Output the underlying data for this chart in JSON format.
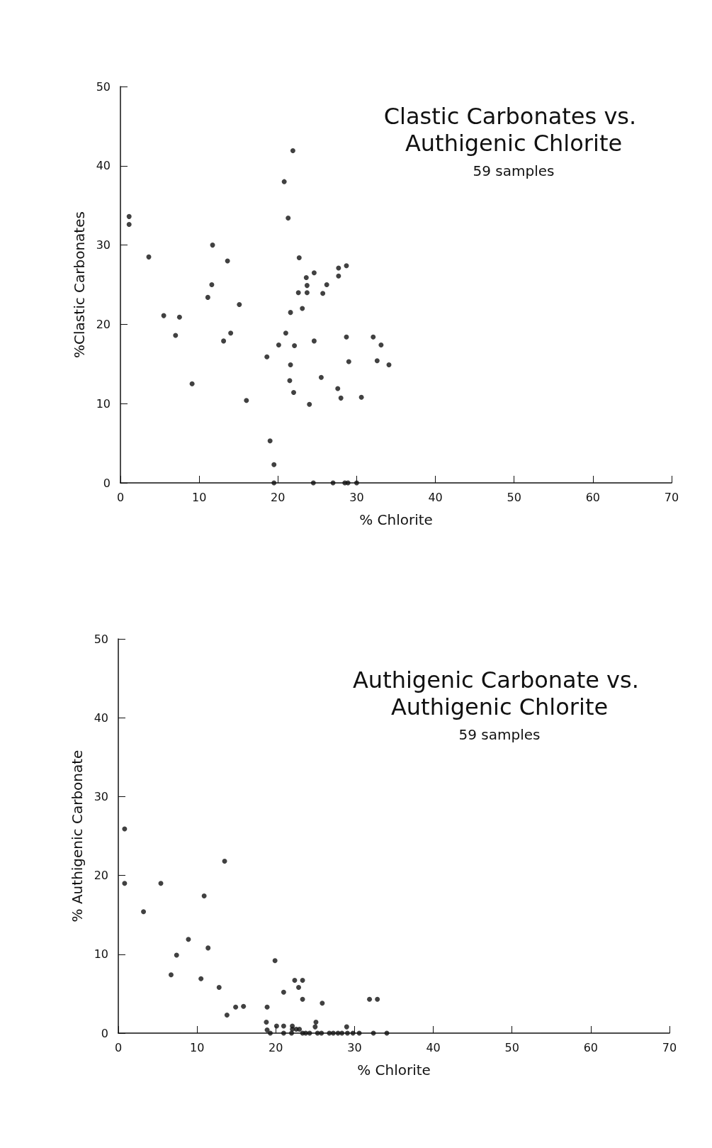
{
  "chart_data": [
    {
      "type": "scatter",
      "title": "Clastic Carbonates vs. Authigenic Chlorite",
      "subtitle": "59 samples",
      "xlabel": "% Chlorite",
      "ylabel": "%Clastic Carbonates",
      "marker": "circle",
      "grid": false,
      "xlim": [
        0,
        70
      ],
      "ylim": [
        0,
        50
      ],
      "xticks": [
        0,
        10,
        20,
        30,
        40,
        50,
        60,
        70
      ],
      "yticks": [
        0,
        10,
        20,
        30,
        40,
        50
      ],
      "series": [
        {
          "color": "#111111",
          "x": [
            1.1,
            1.1,
            3.6,
            11.7,
            13.6,
            11.6,
            21.9,
            20.8,
            21.3,
            22.7,
            23.6,
            23.7,
            24.6,
            26.2,
            27.7,
            27.7,
            28.7,
            22.6,
            23.7,
            25.7,
            11.1,
            15.1,
            5.5,
            7.5,
            21.6,
            23.1,
            7.0,
            13.1,
            14.0,
            21.0,
            20.1,
            22.1,
            24.6,
            28.7,
            32.1,
            33.1,
            18.6,
            21.6,
            29.0,
            32.6,
            34.1,
            9.1,
            21.5,
            25.5,
            22.0,
            27.6,
            28.0,
            30.6,
            16.0,
            24.0,
            19.0,
            19.5,
            19.5,
            24.5,
            27.0,
            28.5,
            28.9,
            30.0
          ],
          "values": [
            33.6,
            32.6,
            28.5,
            30.0,
            28.0,
            25.0,
            41.9,
            38.0,
            33.4,
            28.4,
            25.9,
            24.9,
            26.5,
            25.0,
            27.1,
            26.1,
            27.4,
            24.0,
            24.0,
            23.9,
            23.4,
            22.5,
            21.1,
            20.9,
            21.5,
            22.0,
            18.6,
            17.9,
            18.9,
            18.9,
            17.4,
            17.3,
            17.9,
            18.4,
            18.4,
            17.4,
            15.9,
            14.9,
            15.3,
            15.4,
            14.9,
            12.5,
            12.9,
            13.3,
            11.4,
            11.9,
            10.7,
            10.8,
            10.4,
            9.9,
            5.3,
            2.3,
            0,
            0,
            0,
            0,
            0,
            0
          ]
        }
      ]
    },
    {
      "type": "scatter",
      "title": "Authigenic Carbonate vs. Authigenic Chlorite",
      "subtitle": "59 samples",
      "xlabel": "% Chlorite",
      "ylabel": "% Authigenic Carbonate",
      "marker": "circle",
      "grid": false,
      "xlim": [
        0,
        70
      ],
      "ylim": [
        0,
        50
      ],
      "xticks": [
        0,
        10,
        20,
        30,
        40,
        50,
        60,
        70
      ],
      "yticks": [
        0,
        10,
        20,
        30,
        40,
        50
      ],
      "series": [
        {
          "color": "#111111",
          "x": [
            0.8,
            0.8,
            5.4,
            13.5,
            10.9,
            3.2,
            8.9,
            11.4,
            7.4,
            6.7,
            10.5,
            12.8,
            19.9,
            22.4,
            23.4,
            22.9,
            21.0,
            23.4,
            25.9,
            31.9,
            32.9,
            14.9,
            15.9,
            18.9,
            13.8,
            18.8,
            18.9,
            20.1,
            21.0,
            22.1,
            22.1,
            22.6,
            23.0,
            25.1,
            25.0,
            29.0,
            19.3,
            21.0,
            22.0,
            23.4,
            23.8,
            24.3,
            25.3,
            25.8,
            26.8,
            27.3,
            27.9,
            28.4,
            29.1,
            29.8,
            30.6,
            32.4,
            34.1
          ],
          "values": [
            25.9,
            19.0,
            19.0,
            21.8,
            17.4,
            15.4,
            11.9,
            10.8,
            9.9,
            7.4,
            6.9,
            5.8,
            9.2,
            6.7,
            6.7,
            5.8,
            5.2,
            4.3,
            3.8,
            4.3,
            4.3,
            3.3,
            3.4,
            3.3,
            2.3,
            1.4,
            0.4,
            0.9,
            0.9,
            0.9,
            0.5,
            0.5,
            0.5,
            1.4,
            0.8,
            0.8,
            0,
            0,
            0,
            0,
            0,
            0,
            0,
            0,
            0,
            0,
            0,
            0,
            0,
            0,
            0,
            0,
            0
          ]
        }
      ]
    }
  ]
}
